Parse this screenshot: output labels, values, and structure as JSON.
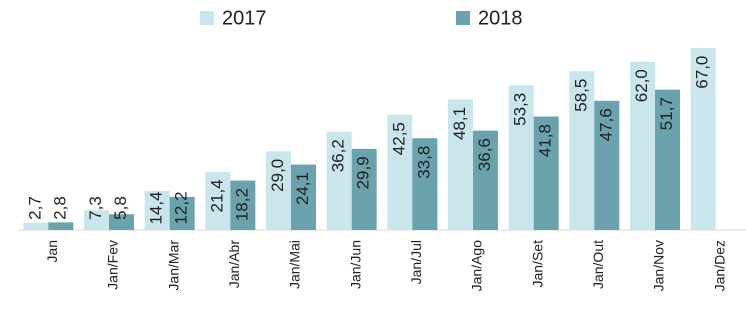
{
  "chart_data": {
    "type": "bar",
    "categories": [
      "Jan",
      "Jan/Fev",
      "Jan/Mar",
      "Jan/Abr",
      "Jan/Mai",
      "Jan/Jun",
      "Jan/Jul",
      "Jan/Ago",
      "Jan/Set",
      "Jan/Out",
      "Jan/Nov",
      "Jan/Dez"
    ],
    "series": [
      {
        "name": "2017",
        "color": "#c8e6ec",
        "values": [
          2.7,
          7.3,
          14.4,
          21.4,
          29.0,
          36.2,
          42.5,
          48.1,
          53.3,
          58.5,
          62.0,
          67.0
        ],
        "value_labels": [
          "2,7",
          "7,3",
          "14,4",
          "21,4",
          "29,0",
          "36,2",
          "42,5",
          "48,1",
          "53,3",
          "58,5",
          "62,0",
          "67,0"
        ]
      },
      {
        "name": "2018",
        "color": "#6aa2ae",
        "values": [
          2.8,
          5.8,
          12.2,
          18.2,
          24.1,
          29.9,
          33.8,
          36.6,
          41.8,
          47.6,
          51.7,
          null
        ],
        "value_labels": [
          "2,8",
          "5,8",
          "12,2",
          "18,2",
          "24,1",
          "29,9",
          "33,8",
          "36,6",
          "41,8",
          "47,6",
          "51,7",
          null
        ]
      }
    ],
    "ylim": [
      0,
      70
    ]
  }
}
